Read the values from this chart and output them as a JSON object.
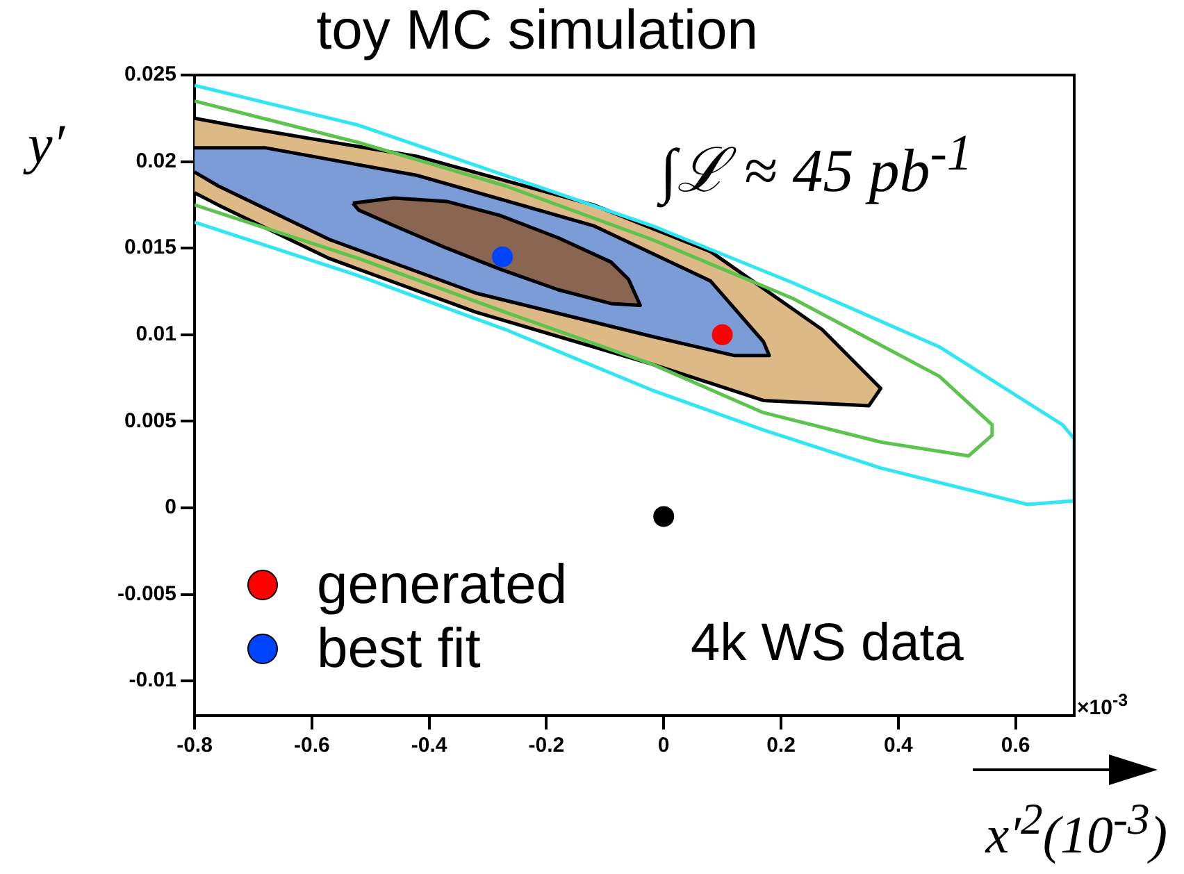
{
  "chart_data": {
    "type": "line",
    "title": "toy MC simulation",
    "xlabel": "x′$^{2}$(10$^{-3}$)",
    "ylabel": "y′",
    "xlim": [
      -0.8,
      0.7
    ],
    "xticks": [
      -0.8,
      -0.6,
      -0.4,
      -0.2,
      0,
      0.2,
      0.4,
      0.6
    ],
    "ylim": [
      -0.012,
      0.025
    ],
    "yticks": [
      -0.01,
      -0.005,
      0,
      0.005,
      0.01,
      0.015,
      0.02,
      0.025
    ],
    "legend": "bottom left",
    "marker": "none",
    "annotations": [
      "×10$^{-3}$",
      "∫ℒ ≈ 45 pb$^{-1}$",
      "4k WS data"
    ],
    "series": [
      {
        "type": "area",
        "color": "#ddb985",
        "x": [
          -0.8,
          -0.72,
          -0.42,
          -0.12,
          0.08,
          0.27,
          0.37,
          0.35,
          0.17,
          -0.02,
          -0.32,
          -0.57,
          -0.76,
          -0.8
        ],
        "values": [
          0.0225,
          0.022,
          0.0203,
          0.0175,
          0.0148,
          0.0103,
          0.0069,
          0.0059,
          0.0062,
          0.0083,
          0.0113,
          0.0144,
          0.0175,
          0.0182
        ]
      },
      {
        "type": "area",
        "color": "#7b9cd6",
        "x": [
          -0.8,
          -0.68,
          -0.42,
          -0.12,
          0.08,
          0.17,
          0.18,
          0.12,
          -0.02,
          -0.32,
          -0.57,
          -0.76,
          -0.8
        ],
        "values": [
          0.0208,
          0.0208,
          0.0192,
          0.0163,
          0.0131,
          0.0096,
          0.0088,
          0.0088,
          0.0099,
          0.0124,
          0.0155,
          0.0186,
          0.0194
        ]
      },
      {
        "type": "area",
        "color": "#8a6652",
        "x": [
          -0.53,
          -0.46,
          -0.37,
          -0.28,
          -0.18,
          -0.09,
          -0.06,
          -0.04,
          -0.09,
          -0.18,
          -0.28,
          -0.37,
          -0.46,
          -0.52,
          -0.53
        ],
        "values": [
          0.0176,
          0.0179,
          0.0177,
          0.0169,
          0.0156,
          0.0142,
          0.0132,
          0.0117,
          0.0118,
          0.0126,
          0.0138,
          0.015,
          0.0163,
          0.0172,
          0.0176
        ]
      },
      {
        "color": "#5dc34f",
        "x": [
          -0.8,
          -0.52,
          -0.27,
          -0.02,
          0.22,
          0.47,
          0.56,
          0.56,
          0.52,
          0.37,
          0.17,
          -0.02,
          -0.27,
          -0.52,
          -0.8
        ],
        "values": [
          0.0235,
          0.0211,
          0.0186,
          0.0155,
          0.0121,
          0.0076,
          0.0048,
          0.0042,
          0.003,
          0.0038,
          0.0055,
          0.0083,
          0.0113,
          0.0144,
          0.0175
        ]
      },
      {
        "color": "#2fe6f2",
        "x": [
          -0.8,
          -0.52,
          -0.27,
          -0.02,
          0.22,
          0.47,
          0.68,
          0.7,
          0.7,
          0.62,
          0.37,
          0.17,
          -0.02,
          -0.27,
          -0.52,
          -0.8
        ],
        "values": [
          0.0244,
          0.0221,
          0.0192,
          0.0163,
          0.013,
          0.0093,
          0.0048,
          0.004,
          0.0004,
          0.0002,
          0.0023,
          0.0045,
          0.0068,
          0.0103,
          0.0134,
          0.0165
        ]
      },
      {
        "type": "scatter",
        "marker": "circle",
        "color": "#000000",
        "x": [
          0
        ],
        "values": [
          -0.0005
        ]
      },
      {
        "type": "scatter",
        "marker": "circle",
        "name": "generated",
        "color": "#ff0000",
        "x": [
          0.1
        ],
        "values": [
          0.01
        ]
      },
      {
        "type": "scatter",
        "marker": "circle",
        "name": "best fit",
        "color": "#0044ff",
        "x": [
          -0.275
        ],
        "values": [
          0.0145
        ]
      }
    ]
  }
}
